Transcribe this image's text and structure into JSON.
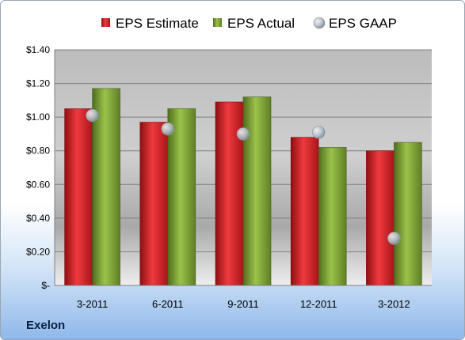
{
  "company": "Exelon",
  "chart_data": {
    "type": "bar",
    "categories": [
      "3-2011",
      "6-2011",
      "9-2011",
      "12-2011",
      "3-2012"
    ],
    "series": [
      {
        "name": "EPS Estimate",
        "values": [
          1.05,
          0.97,
          1.09,
          0.88,
          0.8
        ],
        "color": "#e0262b"
      },
      {
        "name": "EPS Actual",
        "values": [
          1.17,
          1.05,
          1.12,
          0.82,
          0.85
        ],
        "color": "#8cb03e"
      },
      {
        "name": "EPS GAAP",
        "values": [
          1.01,
          0.93,
          0.9,
          0.91,
          0.28
        ],
        "color": "#b8c2cc",
        "style": "marker"
      }
    ],
    "ylim": [
      0,
      1.4
    ],
    "yticks": [
      0,
      0.2,
      0.4,
      0.6,
      0.8,
      1.0,
      1.2,
      1.4
    ],
    "ytick_labels": [
      "$-",
      "$0.20",
      "$0.40",
      "$0.60",
      "$0.80",
      "$1.00",
      "$1.20",
      "$1.40"
    ],
    "legend_position": "top",
    "grid": true
  }
}
